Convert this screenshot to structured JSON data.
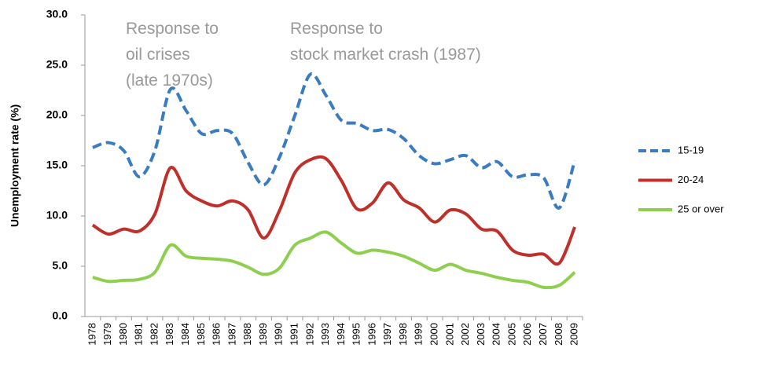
{
  "chart_data": {
    "type": "line",
    "y_label": "Unemployment rate (%)",
    "annotations": [
      {
        "lines": [
          "Response to",
          "oil crises",
          "(late 1970s)"
        ]
      },
      {
        "lines": [
          "Response to",
          "stock market crash (1987)"
        ]
      }
    ],
    "categories": [
      "1978",
      "1979",
      "1980",
      "1981",
      "1982",
      "1983",
      "1984",
      "1985",
      "1986",
      "1987",
      "1988",
      "1989",
      "1990",
      "1991",
      "1992",
      "1993",
      "1994",
      "1995",
      "1996",
      "1997",
      "1998",
      "1999",
      "2000",
      "2001",
      "2002",
      "2003",
      "2004",
      "2005",
      "2006",
      "2007",
      "2008",
      "2009"
    ],
    "series": [
      {
        "name": "15-19",
        "color": "#3a7cc2",
        "style": "dashed",
        "values": [
          16.8,
          17.3,
          16.5,
          13.9,
          16.5,
          22.6,
          20.5,
          18.2,
          18.5,
          18.2,
          15.3,
          13.1,
          15.8,
          20.0,
          24.1,
          22.0,
          19.5,
          19.2,
          18.5,
          18.6,
          17.7,
          16.0,
          15.2,
          15.6,
          16.0,
          14.8,
          15.4,
          13.9,
          14.1,
          13.8,
          10.8,
          15.5
        ]
      },
      {
        "name": "20-24",
        "color": "#c0302a",
        "style": "solid",
        "values": [
          9.1,
          8.2,
          8.7,
          8.5,
          10.2,
          14.8,
          12.5,
          11.5,
          11.0,
          11.5,
          10.6,
          7.8,
          10.5,
          14.3,
          15.6,
          15.7,
          13.5,
          10.7,
          11.3,
          13.3,
          11.6,
          10.8,
          9.4,
          10.6,
          10.2,
          8.7,
          8.5,
          6.6,
          6.1,
          6.2,
          5.3,
          8.9
        ]
      },
      {
        "name": "25 or over",
        "color": "#8fcf4f",
        "style": "solid",
        "values": [
          3.9,
          3.5,
          3.6,
          3.7,
          4.4,
          7.1,
          6.0,
          5.8,
          5.7,
          5.5,
          4.9,
          4.2,
          4.8,
          7.1,
          7.8,
          8.4,
          7.3,
          6.3,
          6.6,
          6.4,
          6.0,
          5.3,
          4.6,
          5.2,
          4.6,
          4.3,
          3.9,
          3.6,
          3.4,
          2.9,
          3.1,
          4.4
        ]
      }
    ],
    "ylim": [
      0,
      30
    ],
    "yticks": [
      {
        "value": 0,
        "label": "0.0"
      },
      {
        "value": 5,
        "label": "5.0"
      },
      {
        "value": 10,
        "label": "10.0"
      },
      {
        "value": 15,
        "label": "15.0"
      },
      {
        "value": 20,
        "label": "20.0"
      },
      {
        "value": 25,
        "label": "25.0"
      },
      {
        "value": 30,
        "label": "30.0"
      }
    ],
    "grid": false,
    "legend": "right"
  }
}
